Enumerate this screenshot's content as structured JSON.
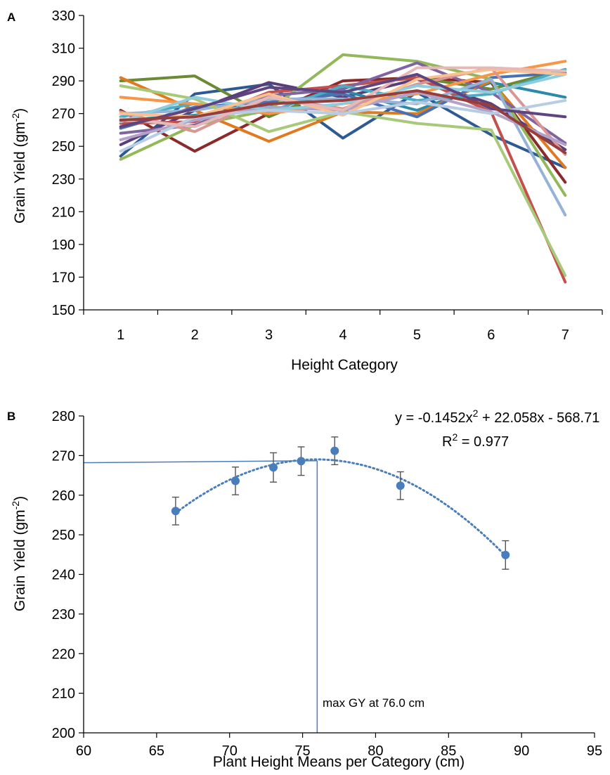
{
  "chart_data": [
    {
      "type": "line",
      "panel_label": "A",
      "xlabel": "Height Category",
      "ylabel_main": "Grain Yield (gm",
      "ylabel_sup": "-2",
      "ylabel_end": ")",
      "x": [
        1,
        2,
        3,
        4,
        5,
        6,
        7
      ],
      "x_tick_labels": [
        "1",
        "2",
        "3",
        "4",
        "5",
        "6",
        "7"
      ],
      "xlim": [
        0.5,
        7.5
      ],
      "ylim": [
        150,
        330
      ],
      "y_ticks": [
        150,
        170,
        190,
        210,
        230,
        250,
        270,
        290,
        310,
        330
      ],
      "y_tick_labels": [
        "150",
        "170",
        "190",
        "210",
        "230",
        "250",
        "270",
        "290",
        "310",
        "330"
      ],
      "grid": false,
      "series": [
        {
          "color": "#2E5A94",
          "values": [
            244,
            282,
            288,
            255,
            283,
            257,
            237
          ]
        },
        {
          "color": "#8B2A2A",
          "values": [
            272,
            247,
            270,
            290,
            292,
            289,
            228
          ]
        },
        {
          "color": "#6A8A33",
          "values": [
            290,
            293,
            268,
            287,
            292,
            285,
            297
          ]
        },
        {
          "color": "#5A3E79",
          "values": [
            251,
            272,
            289,
            280,
            291,
            276,
            248
          ]
        },
        {
          "color": "#2A8AA8",
          "values": [
            266,
            269,
            275,
            284,
            272,
            289,
            280
          ]
        },
        {
          "color": "#E07A21",
          "values": [
            292,
            272,
            253,
            271,
            270,
            290,
            237
          ]
        },
        {
          "color": "#4A72B3",
          "values": [
            261,
            274,
            277,
            282,
            268,
            292,
            295
          ]
        },
        {
          "color": "#C4504E",
          "values": [
            264,
            265,
            283,
            287,
            292,
            271,
            167
          ]
        },
        {
          "color": "#93B85A",
          "values": [
            242,
            263,
            272,
            306,
            302,
            291,
            220
          ]
        },
        {
          "color": "#8064A2",
          "values": [
            258,
            263,
            281,
            285,
            301,
            283,
            252
          ]
        },
        {
          "color": "#4BACC6",
          "values": [
            268,
            276,
            271,
            287,
            278,
            282,
            297
          ]
        },
        {
          "color": "#F79646",
          "values": [
            280,
            276,
            270,
            276,
            282,
            294,
            302
          ]
        },
        {
          "color": "#95B3D7",
          "values": [
            270,
            272,
            279,
            279,
            276,
            291,
            208
          ]
        },
        {
          "color": "#D99694",
          "values": [
            271,
            259,
            280,
            273,
            288,
            298,
            245
          ]
        },
        {
          "color": "#A9C97A",
          "values": [
            287,
            279,
            259,
            271,
            264,
            260,
            171
          ]
        },
        {
          "color": "#B3A2C7",
          "values": [
            254,
            266,
            274,
            272,
            283,
            271,
            251
          ]
        },
        {
          "color": "#8ECDDD",
          "values": [
            265,
            280,
            272,
            276,
            287,
            283,
            294
          ]
        },
        {
          "color": "#FAC090",
          "values": [
            270,
            268,
            282,
            269,
            291,
            297,
            294
          ]
        },
        {
          "color": "#B8CCE4",
          "values": [
            247,
            268,
            272,
            270,
            277,
            270,
            278
          ]
        },
        {
          "color": "#E6B9B8",
          "values": [
            267,
            262,
            280,
            272,
            298,
            298,
            296
          ]
        },
        {
          "color": "#5E4580",
          "values": [
            262,
            273,
            286,
            283,
            294,
            273,
            268
          ]
        },
        {
          "color": "#963E3C",
          "values": [
            266,
            268,
            276,
            278,
            284,
            275,
            246
          ]
        }
      ]
    },
    {
      "type": "scatter",
      "panel_label": "B",
      "xlabel": "Plant Height  Means per Category (cm)",
      "ylabel_main": "Grain Yield (gm",
      "ylabel_sup": "-2",
      "ylabel_end": ")",
      "xlim": [
        60,
        95
      ],
      "ylim": [
        200,
        280
      ],
      "x_ticks": [
        60,
        65,
        70,
        75,
        80,
        85,
        90,
        95
      ],
      "x_tick_labels": [
        "60",
        "65",
        "70",
        "75",
        "80",
        "85",
        "90",
        "95"
      ],
      "y_ticks": [
        200,
        210,
        220,
        230,
        240,
        250,
        260,
        270,
        280
      ],
      "y_tick_labels": [
        "200",
        "210",
        "220",
        "230",
        "240",
        "250",
        "260",
        "270",
        "280"
      ],
      "grid": false,
      "point_color": "#4A7EBB",
      "points": [
        {
          "x": 66.3,
          "y": 256.0,
          "err": 3.5
        },
        {
          "x": 70.4,
          "y": 263.6,
          "err": 3.5
        },
        {
          "x": 73.0,
          "y": 267.0,
          "err": 3.7
        },
        {
          "x": 74.9,
          "y": 268.6,
          "err": 3.6
        },
        {
          "x": 77.2,
          "y": 271.2,
          "err": 3.5
        },
        {
          "x": 81.7,
          "y": 262.4,
          "err": 3.5
        },
        {
          "x": 88.9,
          "y": 244.9,
          "err": 3.6
        }
      ],
      "trendline": {
        "type": "polynomial",
        "coefficients": {
          "a": -0.1452,
          "b": 22.058,
          "c": -568.71
        },
        "x_range": [
          66.3,
          88.9
        ],
        "equation_main": "y = -0.1452x",
        "equation_sup": "2",
        "equation_end": " + 22.058x  - 568.71",
        "r2_main": "R",
        "r2_sup": "2",
        "r2_end": " = 0.977"
      },
      "max_marker": {
        "x": 76.0,
        "y": 268.7,
        "label": "max GY at 76.0 cm",
        "color": "#4A7EBB"
      }
    }
  ]
}
